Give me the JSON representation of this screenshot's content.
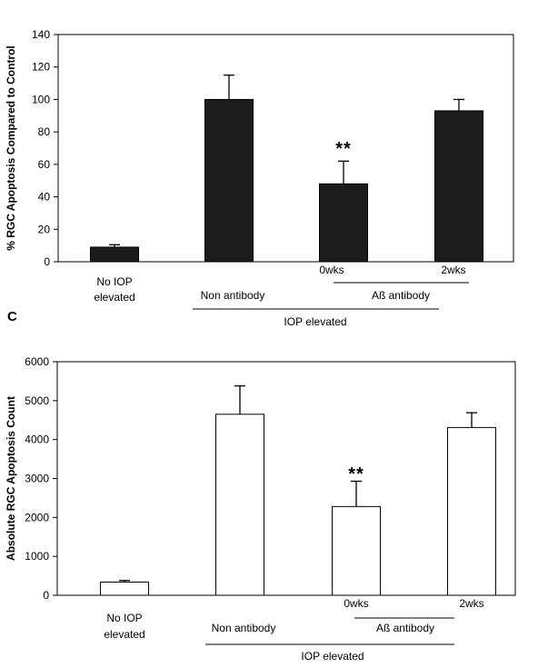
{
  "panel_labels": {
    "c": "C"
  },
  "chart_data": [
    {
      "type": "bar",
      "panel": "top",
      "ylabel": "% RGC Apoptosis Compared to Control",
      "ylim": [
        0,
        140
      ],
      "yticks": [
        0,
        20,
        40,
        60,
        80,
        100,
        120,
        140
      ],
      "bar_color": "#1c1c1c",
      "categories": [
        "No IOP elevated",
        "Non antibody",
        "Aß antibody 0wks",
        "Aß antibody 2wks"
      ],
      "values": [
        9,
        100,
        48,
        93
      ],
      "errors": [
        1.5,
        15,
        14,
        7
      ],
      "significance": [
        null,
        null,
        "**",
        null
      ],
      "annotations": {
        "no_iop": [
          "No IOP",
          "elevated"
        ],
        "non_antibody": "Non antibody",
        "wks0": "0wks",
        "wks2": "2wks",
        "ab_antibody": "Aß antibody",
        "iop_elevated": "IOP elevated"
      }
    },
    {
      "type": "bar",
      "panel": "C",
      "ylabel": "Absolute RGC Apoptosis Count",
      "ylim": [
        0,
        6000
      ],
      "yticks": [
        0,
        1000,
        2000,
        3000,
        4000,
        5000,
        6000
      ],
      "bar_color": "#ffffff",
      "categories": [
        "No IOP elevated",
        "Non antibody",
        "Aß antibody 0wks",
        "Aß antibody 2wks"
      ],
      "values": [
        340,
        4650,
        2280,
        4310
      ],
      "errors": [
        40,
        730,
        650,
        380
      ],
      "significance": [
        null,
        null,
        "**",
        null
      ],
      "annotations": {
        "no_iop": [
          "No IOP",
          "elevated"
        ],
        "non_antibody": "Non antibody",
        "wks0": "0wks",
        "wks2": "2wks",
        "ab_antibody": "Aß antibody",
        "iop_elevated": "IOP elevated"
      }
    }
  ]
}
